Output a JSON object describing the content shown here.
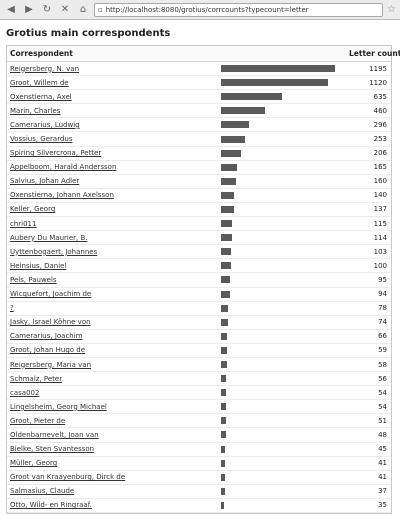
{
  "browser": {
    "url": "http://localhost:8080/grotius/corrcounts?typecount=letter",
    "back_icon": "arrow-left",
    "forward_icon": "arrow-right",
    "reload_icon": "reload",
    "stop_icon": "close",
    "home_icon": "home"
  },
  "page": {
    "title": "Grotius main correspondents"
  },
  "table": {
    "header_correspondent": "Correspondent",
    "header_count": "Letter counts",
    "max_count": 1195,
    "rows": [
      {
        "name": "Reigersberg, N. van",
        "count": 1195
      },
      {
        "name": "Groot, Willem de",
        "count": 1120
      },
      {
        "name": "Oxenstierna, Axel",
        "count": 635
      },
      {
        "name": "Marin, Charles",
        "count": 460
      },
      {
        "name": "Camerarius, Ludwig",
        "count": 296
      },
      {
        "name": "Vossius, Gerardus",
        "count": 253
      },
      {
        "name": "Spiring Silvercrona, Petter",
        "count": 206
      },
      {
        "name": "Appelboom, Harald Andersson",
        "count": 165
      },
      {
        "name": "Salvius, Johan Adler",
        "count": 160
      },
      {
        "name": "Oxenstierna, Johann Axelsson",
        "count": 140
      },
      {
        "name": "Keller, Georg",
        "count": 137
      },
      {
        "name": "chri011",
        "count": 115
      },
      {
        "name": "Aubery Du Maurier, B.",
        "count": 114
      },
      {
        "name": "Uyttenbogaert, Johannes",
        "count": 103
      },
      {
        "name": "Heinsius, Daniel",
        "count": 100
      },
      {
        "name": "Pels, Pauwels",
        "count": 95
      },
      {
        "name": "Wicquefort, Joachim de",
        "count": 94
      },
      {
        "name": "?",
        "count": 78
      },
      {
        "name": "Jasky, Israel Köhne von",
        "count": 74
      },
      {
        "name": "Camerarius, Joachim",
        "count": 66
      },
      {
        "name": "Groot, Johan Hugo de",
        "count": 59
      },
      {
        "name": "Reigersberg, Maria van",
        "count": 58
      },
      {
        "name": "Schmalz, Peter",
        "count": 56
      },
      {
        "name": "casa002",
        "count": 54
      },
      {
        "name": "Lingelsheim, Georg Michael",
        "count": 54
      },
      {
        "name": "Groot, Pieter de",
        "count": 51
      },
      {
        "name": "Oldenbarnevelt, Joan van",
        "count": 48
      },
      {
        "name": "Bielke, Sten Svantesson",
        "count": 45
      },
      {
        "name": "Müller, Georg",
        "count": 41
      },
      {
        "name": "Groot van Kraayenburg, Dirck de",
        "count": 41
      },
      {
        "name": "Salmasius, Claude",
        "count": 37
      },
      {
        "name": "Otto, Wild- en Ringraaf.",
        "count": 35
      }
    ]
  }
}
